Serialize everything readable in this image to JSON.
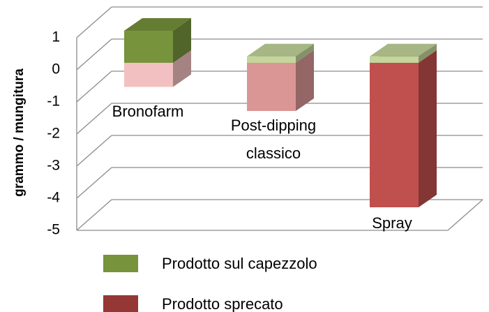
{
  "chart_data": {
    "type": "bar3d-stacked",
    "y_label": "grammo / mungitura",
    "categories": [
      "Bronofarm",
      "Post-dipping classico",
      "Spray"
    ],
    "series": [
      {
        "name": "Prodotto sul capezzolo",
        "color": "#77933c",
        "colors": [
          "#77933c",
          "#c3d69b",
          "#c3d69b"
        ],
        "values": [
          1.0,
          0.2,
          0.2
        ]
      },
      {
        "name": "Prodotto sprecato",
        "color": "#953735",
        "colors": [
          "#f2c0c0",
          "#d99694",
          "#c0504d"
        ],
        "values": [
          -0.75,
          -1.5,
          -4.5
        ]
      }
    ],
    "ylim": [
      -5,
      1
    ],
    "yticks": [
      -5,
      -4,
      -3,
      -2,
      -1,
      0,
      1
    ],
    "grid": true
  }
}
